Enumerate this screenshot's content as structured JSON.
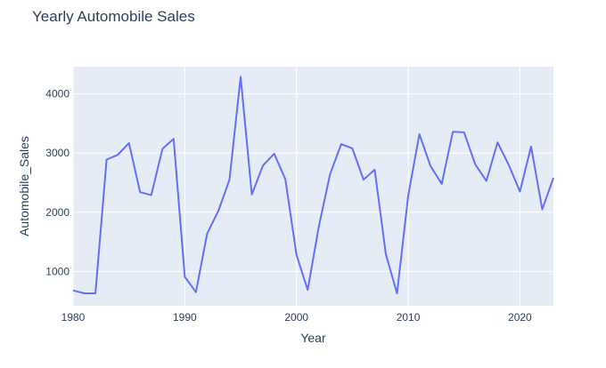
{
  "chart_data": {
    "type": "line",
    "title": "Yearly Automobile Sales",
    "xlabel": "Year",
    "ylabel": "Automobile_Sales",
    "xlim": [
      1980,
      2023
    ],
    "ylim": [
      420,
      4460
    ],
    "xticks": [
      1980,
      1990,
      2000,
      2010,
      2020
    ],
    "yticks": [
      1000,
      2000,
      3000,
      4000
    ],
    "grid": true,
    "plot_background": "#e5ecf6",
    "series": [
      {
        "color": "#636efa",
        "x": [
          1980,
          1981,
          1982,
          1983,
          1984,
          1985,
          1986,
          1987,
          1988,
          1989,
          1990,
          1991,
          1992,
          1993,
          1994,
          1995,
          1996,
          1997,
          1998,
          1999,
          2000,
          2001,
          2002,
          2003,
          2004,
          2005,
          2006,
          2007,
          2008,
          2009,
          2010,
          2011,
          2012,
          2013,
          2014,
          2015,
          2016,
          2017,
          2018,
          2019,
          2020,
          2021,
          2022,
          2023
        ],
        "values": [
          680,
          630,
          630,
          2890,
          2970,
          3170,
          2340,
          2290,
          3070,
          3240,
          910,
          650,
          1640,
          2020,
          2550,
          4290,
          2300,
          2790,
          2990,
          2560,
          1280,
          690,
          1760,
          2640,
          3150,
          3080,
          2550,
          2720,
          1290,
          630,
          2280,
          3320,
          2780,
          2480,
          3360,
          3350,
          2810,
          2530,
          3180,
          2800,
          2350,
          3110,
          2050,
          2580
        ]
      }
    ]
  }
}
